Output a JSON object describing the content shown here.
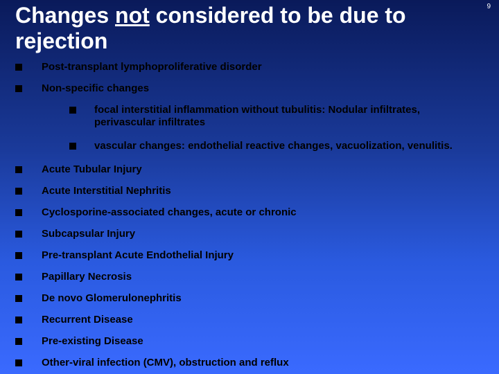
{
  "slide": {
    "number": "9",
    "title_pre": "Changes ",
    "title_underlined": "not",
    "title_post": " considered to be due to rejection",
    "background_gradient": [
      "#0a1a5a",
      "#1a3a9a",
      "#2a5adf",
      "#3a6aff"
    ],
    "title_color": "#ffffff",
    "text_color": "#000000",
    "title_fontsize": 32,
    "body_fontsize": 15,
    "bullets": [
      {
        "text": "Post-transplant lymphoproliferative disorder"
      },
      {
        "text": "Non-specific changes",
        "sub": [
          {
            "text": "focal interstitial inflammation without tubulitis:  Nodular infiltrates, perivascular infiltrates"
          },
          {
            "text": "vascular changes:  endothelial reactive changes, vacuolization, venulitis."
          }
        ]
      },
      {
        "text": "Acute Tubular Injury"
      },
      {
        "text": "Acute Interstitial Nephritis"
      },
      {
        "text": "Cyclosporine-associated changes, acute or chronic"
      },
      {
        "text": "Subcapsular Injury"
      },
      {
        "text": "Pre-transplant Acute Endothelial Injury"
      },
      {
        "text": "Papillary Necrosis"
      },
      {
        "text": "De novo Glomerulonephritis"
      },
      {
        "text": "Recurrent Disease"
      },
      {
        "text": "Pre-existing Disease"
      },
      {
        "text": "Other-viral infection (CMV), obstruction and reflux"
      }
    ]
  }
}
